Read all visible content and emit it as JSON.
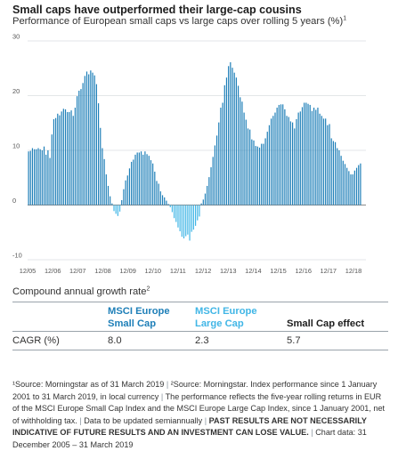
{
  "chart": {
    "title": "Small caps have outperformed their large-cap cousins",
    "subtitle": "Performance of European small caps vs large caps over rolling 5 years (%)",
    "subtitle_sup": "1"
  },
  "chart_data": {
    "type": "bar",
    "title": "Small caps have outperformed their large-cap cousins",
    "subtitle": "Performance of European small caps vs large caps over rolling 5 years (%)",
    "ylim": [
      -10,
      30
    ],
    "yticks": [
      "30",
      "20",
      "10",
      "0",
      "-10"
    ],
    "x_tick_labels": [
      "12/05",
      "12/06",
      "12/07",
      "12/08",
      "12/09",
      "12/10",
      "12/11",
      "12/12",
      "12/13",
      "12/14",
      "12/15",
      "12/16",
      "12/17",
      "12/18"
    ],
    "x_range": [
      "2005-12",
      "2019-03"
    ],
    "grid": "horizontal",
    "legend": "none",
    "colors": {
      "positive": "#1e7fb8",
      "negative": "#41b6e6",
      "grid": "#c8cdd2",
      "zero": "#8a8a8a"
    },
    "x_start": "2005-12",
    "series": [
      {
        "values": [
          9.8,
          9.9,
          10.4,
          10.2,
          10.2,
          10.4,
          10.2,
          10.0,
          10.7,
          9.2,
          10.0,
          8.6,
          12.9,
          15.7,
          15.9,
          16.7,
          16.4,
          17.1,
          17.6,
          17.5,
          17.0,
          17.0,
          17.3,
          16.3,
          17.8,
          19.9,
          20.9,
          21.2,
          22.3,
          23.6,
          24.4,
          23.9,
          24.6,
          24.2,
          23.7,
          22.1,
          18.6,
          14.1,
          10.4,
          8.4,
          5.6,
          3.5,
          1.6,
          0.3,
          -1.1,
          -1.6,
          -2.0,
          -1.2,
          0.9,
          2.9,
          4.5,
          5.4,
          6.7,
          7.9,
          8.3,
          9.2,
          9.6,
          9.6,
          9.8,
          9.2,
          9.8,
          9.3,
          9.0,
          8.2,
          7.6,
          6.1,
          4.4,
          3.9,
          2.5,
          1.8,
          1.4,
          0.8,
          0.2,
          -0.4,
          -1.3,
          -2.4,
          -3.1,
          -4.1,
          -4.8,
          -5.8,
          -6.1,
          -5.7,
          -5.4,
          -6.5,
          -4.9,
          -4.5,
          -3.8,
          -2.8,
          -2.1,
          0.3,
          1.0,
          2.1,
          3.5,
          5.1,
          6.9,
          8.8,
          10.9,
          12.7,
          15.1,
          17.8,
          18.7,
          21.9,
          23.3,
          25.4,
          26.1,
          25.1,
          24.2,
          23.3,
          21.8,
          19.7,
          18.9,
          16.9,
          15.6,
          14.0,
          13.8,
          12.0,
          11.8,
          10.8,
          10.7,
          10.5,
          11.2,
          11.2,
          12.2,
          13.4,
          14.6,
          15.8,
          16.3,
          16.9,
          17.8,
          18.3,
          18.4,
          18.4,
          17.5,
          16.3,
          16.1,
          15.3,
          15.1,
          14.0,
          15.7,
          16.9,
          17.1,
          17.9,
          18.7,
          18.7,
          18.5,
          18.3,
          17.2,
          17.8,
          17.4,
          17.8,
          16.7,
          16.3,
          15.8,
          15.8,
          14.6,
          14.8,
          12.2,
          11.7,
          11.5,
          10.4,
          10.0,
          9.0,
          8.1,
          7.5,
          6.8,
          6.2,
          5.6,
          5.6,
          6.3,
          6.8,
          7.3,
          7.6
        ]
      }
    ]
  },
  "cagr": {
    "heading": "Compound annual growth rate",
    "heading_sup": "2",
    "columns": [
      {
        "line1": "MSCI Europe",
        "line2": "Small Cap",
        "color": "#1e7fb8"
      },
      {
        "line1": "MSCI Europe",
        "line2": "Large Cap",
        "color": "#41b6e6"
      },
      {
        "line1": "Small Cap effect",
        "line2": "",
        "color": "#1d1d1d"
      }
    ],
    "row_label": "CAGR (%)",
    "values": [
      "8.0",
      "2.3",
      "5.7"
    ]
  },
  "footnote": {
    "s1": "¹Source: Morningstar as of 31 March 2019",
    "sep": "|",
    "s2": "²Source: Morningstar. Index performance since 1 January 2001 to 31 March 2019, in local currency",
    "s3": "The performance reflects the five-year rolling returns in EUR of the MSCI Europe Small Cap Index and the MSCI Europe Large Cap Index, since 1 January 2001, net of withholding tax.",
    "s4": "Data to be updated semiannually",
    "s5": "PAST RESULTS ARE NOT NECESSARILY INDICATIVE OF FUTURE RESULTS AND AN INVESTMENT CAN LOSE VALUE.",
    "s6": "Chart data: 31 December 2005 – 31 March 2019"
  }
}
